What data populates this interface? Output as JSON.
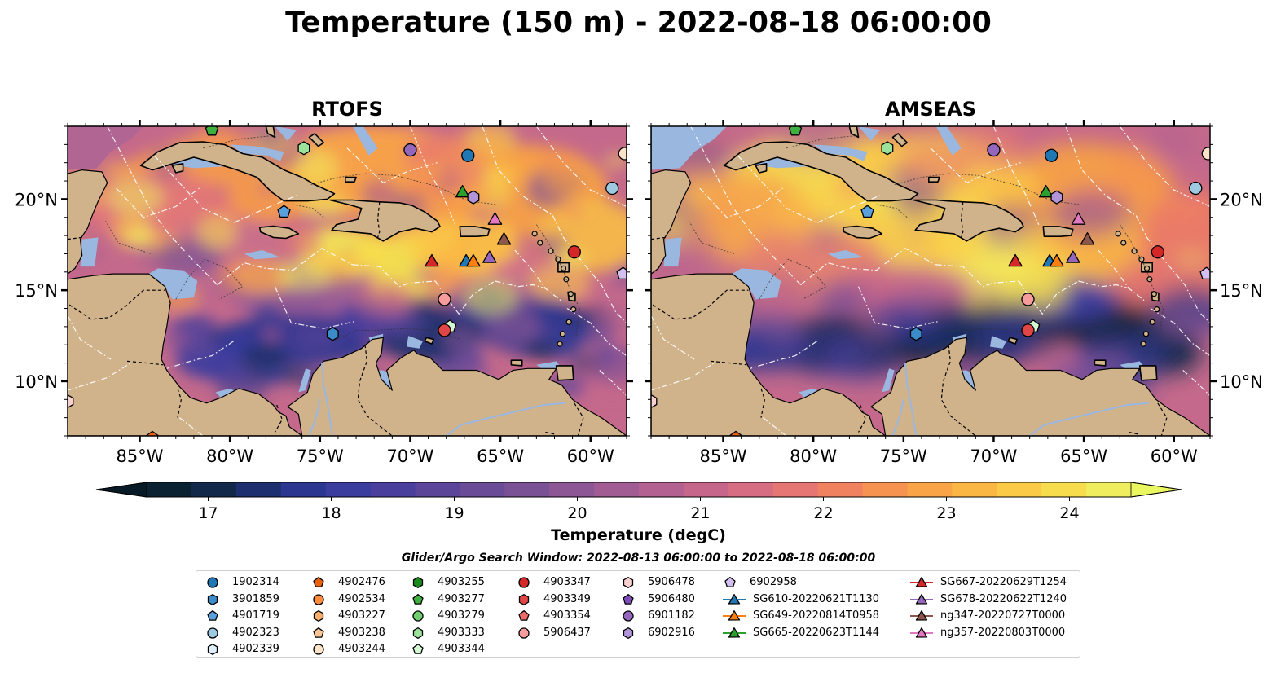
{
  "title": "Temperature (150 m) - 2022-08-18 06:00:00",
  "panels": [
    {
      "id": "rtofs",
      "title": "RTOFS"
    },
    {
      "id": "amseas",
      "title": "AMSEAS"
    }
  ],
  "map_extent": {
    "lon_min": -89,
    "lon_max": -58,
    "lat_min": 7,
    "lat_max": 24
  },
  "lon_ticks": [
    {
      "value": -85,
      "label": "85°W"
    },
    {
      "value": -80,
      "label": "80°W"
    },
    {
      "value": -75,
      "label": "75°W"
    },
    {
      "value": -70,
      "label": "70°W"
    },
    {
      "value": -65,
      "label": "65°W"
    },
    {
      "value": -60,
      "label": "60°W"
    }
  ],
  "lat_ticks": [
    {
      "value": 10,
      "label": "10°N"
    },
    {
      "value": 15,
      "label": "15°N"
    },
    {
      "value": 20,
      "label": "20°N"
    }
  ],
  "colorbar": {
    "label": "Temperature (degC)",
    "min": 16.5,
    "max": 24.5,
    "extend": "both",
    "ticks": [
      17,
      18,
      19,
      20,
      21,
      22,
      23,
      24
    ],
    "tick_labels": [
      "17",
      "18",
      "19",
      "20",
      "21",
      "22",
      "23",
      "24"
    ],
    "colors": [
      "#0b2232",
      "#12294a",
      "#1d2f6e",
      "#2a3690",
      "#3a3c9e",
      "#4a3f9c",
      "#5a4599",
      "#6a4b97",
      "#7b5196",
      "#8d5795",
      "#a05c93",
      "#b36190",
      "#c6668b",
      "#d66d82",
      "#e57673",
      "#f08260",
      "#f69350",
      "#f9a446",
      "#fbb744",
      "#fbca47",
      "#f7dd4e",
      "#f0ee5e"
    ],
    "under_color": "#071a26",
    "over_color": "#eaf760"
  },
  "legend": {
    "title": "Glider/Argo Search Window: 2022-08-13 06:00:00 to 2022-08-18 06:00:00",
    "columns": [
      [
        {
          "label": "1902314",
          "marker": "circle",
          "color": "#1f77b4"
        },
        {
          "label": "3901859",
          "marker": "hexagon",
          "color": "#3b8bc8"
        },
        {
          "label": "4901719",
          "marker": "pentagon",
          "color": "#5aa0dc"
        },
        {
          "label": "4902323",
          "marker": "circle",
          "color": "#9ecae1"
        },
        {
          "label": "4902339",
          "marker": "hexagon",
          "color": "#deeefa"
        }
      ],
      [
        {
          "label": "4902476",
          "marker": "pentagon",
          "color": "#e8600c"
        },
        {
          "label": "4902534",
          "marker": "circle",
          "color": "#fd8d3c"
        },
        {
          "label": "4903227",
          "marker": "hexagon",
          "color": "#fdae6b"
        },
        {
          "label": "4903238",
          "marker": "pentagon",
          "color": "#fdc594"
        },
        {
          "label": "4903244",
          "marker": "circle",
          "color": "#fde3c8"
        }
      ],
      [
        {
          "label": "4903255",
          "marker": "hexagon",
          "color": "#1a8a1a"
        },
        {
          "label": "4903277",
          "marker": "pentagon",
          "color": "#3fb03f"
        },
        {
          "label": "4903279",
          "marker": "circle",
          "color": "#6fcf6f"
        },
        {
          "label": "4903333",
          "marker": "hexagon",
          "color": "#9be39b"
        },
        {
          "label": "4903344",
          "marker": "pentagon",
          "color": "#d4f7d4"
        }
      ],
      [
        {
          "label": "4903347",
          "marker": "circle",
          "color": "#d62728"
        },
        {
          "label": "4903349",
          "marker": "hexagon",
          "color": "#e04646"
        },
        {
          "label": "4903354",
          "marker": "pentagon",
          "color": "#ec6b6b"
        },
        {
          "label": "5906437",
          "marker": "circle",
          "color": "#f59c9c"
        }
      ],
      [
        {
          "label": "5906478",
          "marker": "hexagon",
          "color": "#fbd0d0"
        },
        {
          "label": "5906480",
          "marker": "pentagon",
          "color": "#7e4cb8"
        },
        {
          "label": "6901182",
          "marker": "circle",
          "color": "#9467bd"
        },
        {
          "label": "6902916",
          "marker": "hexagon",
          "color": "#b294d8"
        }
      ],
      [
        {
          "label": "6902958",
          "marker": "pentagon",
          "color": "#d3bff0"
        },
        {
          "label": "SG610-20220621T1130",
          "marker": "triangle",
          "color": "#1f77b4",
          "line": true
        },
        {
          "label": "SG649-20220814T0958",
          "marker": "triangle",
          "color": "#ff7f0e",
          "line": true
        },
        {
          "label": "SG665-20220623T1144",
          "marker": "triangle",
          "color": "#2ca02c",
          "line": true
        }
      ],
      [
        {
          "label": "SG667-20220629T1254",
          "marker": "triangle",
          "color": "#d62728",
          "line": true
        },
        {
          "label": "SG678-20220622T1240",
          "marker": "triangle",
          "color": "#9467bd",
          "line": true
        },
        {
          "label": "ng347-20220727T0000",
          "marker": "triangle",
          "color": "#8c564b",
          "line": true
        },
        {
          "label": "ng357-20220803T0000",
          "marker": "triangle",
          "color": "#e377c2",
          "line": true
        }
      ]
    ]
  },
  "platforms": [
    {
      "marker": "pentagon",
      "color": "#3fb03f",
      "lon": -81.0,
      "lat": 23.8
    },
    {
      "marker": "hexagon",
      "color": "#9be39b",
      "lon": -75.9,
      "lat": 22.8
    },
    {
      "marker": "circle",
      "color": "#9467bd",
      "lon": -70.0,
      "lat": 22.7
    },
    {
      "marker": "circle",
      "color": "#1f77b4",
      "lon": -66.8,
      "lat": 22.4
    },
    {
      "marker": "circle",
      "color": "#fde3c8",
      "lon": -58.1,
      "lat": 22.5
    },
    {
      "marker": "circle",
      "color": "#9ecae1",
      "lon": -58.8,
      "lat": 20.6
    },
    {
      "marker": "triangle",
      "color": "#2ca02c",
      "lon": -67.1,
      "lat": 20.4
    },
    {
      "marker": "hexagon",
      "color": "#b294d8",
      "lon": -66.5,
      "lat": 20.1
    },
    {
      "marker": "pentagon",
      "color": "#5aa0dc",
      "lon": -77.0,
      "lat": 19.3
    },
    {
      "marker": "triangle",
      "color": "#e377c2",
      "lon": -65.3,
      "lat": 18.9
    },
    {
      "marker": "triangle",
      "color": "#8c564b",
      "lon": -64.8,
      "lat": 17.8
    },
    {
      "marker": "circle",
      "color": "#d62728",
      "lon": -60.9,
      "lat": 17.1
    },
    {
      "marker": "triangle",
      "color": "#d62728",
      "lon": -68.8,
      "lat": 16.6
    },
    {
      "marker": "triangle",
      "color": "#1f77b4",
      "lon": -66.9,
      "lat": 16.6
    },
    {
      "marker": "triangle",
      "color": "#ff7f0e",
      "lon": -66.5,
      "lat": 16.6
    },
    {
      "marker": "triangle",
      "color": "#9467bd",
      "lon": -65.6,
      "lat": 16.8
    },
    {
      "marker": "pentagon",
      "color": "#d3bff0",
      "lon": -58.2,
      "lat": 15.9
    },
    {
      "marker": "circle",
      "color": "#f59c9c",
      "lon": -68.1,
      "lat": 14.5
    },
    {
      "marker": "pentagon",
      "color": "#d4f7d4",
      "lon": -67.8,
      "lat": 13.0
    },
    {
      "marker": "circle",
      "color": "#e04646",
      "lon": -68.1,
      "lat": 12.8
    },
    {
      "marker": "hexagon",
      "color": "#3b8bc8",
      "lon": -74.3,
      "lat": 12.6
    },
    {
      "marker": "hexagon",
      "color": "#fbd0d0",
      "lon": -89.0,
      "lat": 8.9
    },
    {
      "marker": "pentagon",
      "color": "#e8600c",
      "lon": -84.3,
      "lat": 6.9
    }
  ]
}
